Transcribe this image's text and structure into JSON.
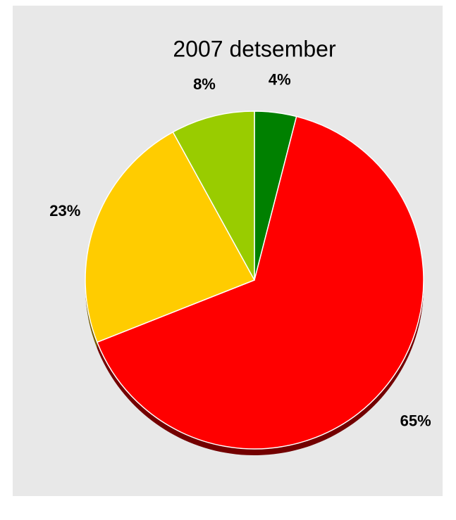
{
  "chart_data": {
    "type": "pie",
    "title": "2007 detsember",
    "values": [
      4,
      65,
      23,
      8
    ],
    "value_labels": [
      "4%",
      "65%",
      "23%",
      "8%"
    ],
    "colors": [
      "#008000",
      "#ff0000",
      "#ffcc00",
      "#99cc00"
    ]
  }
}
